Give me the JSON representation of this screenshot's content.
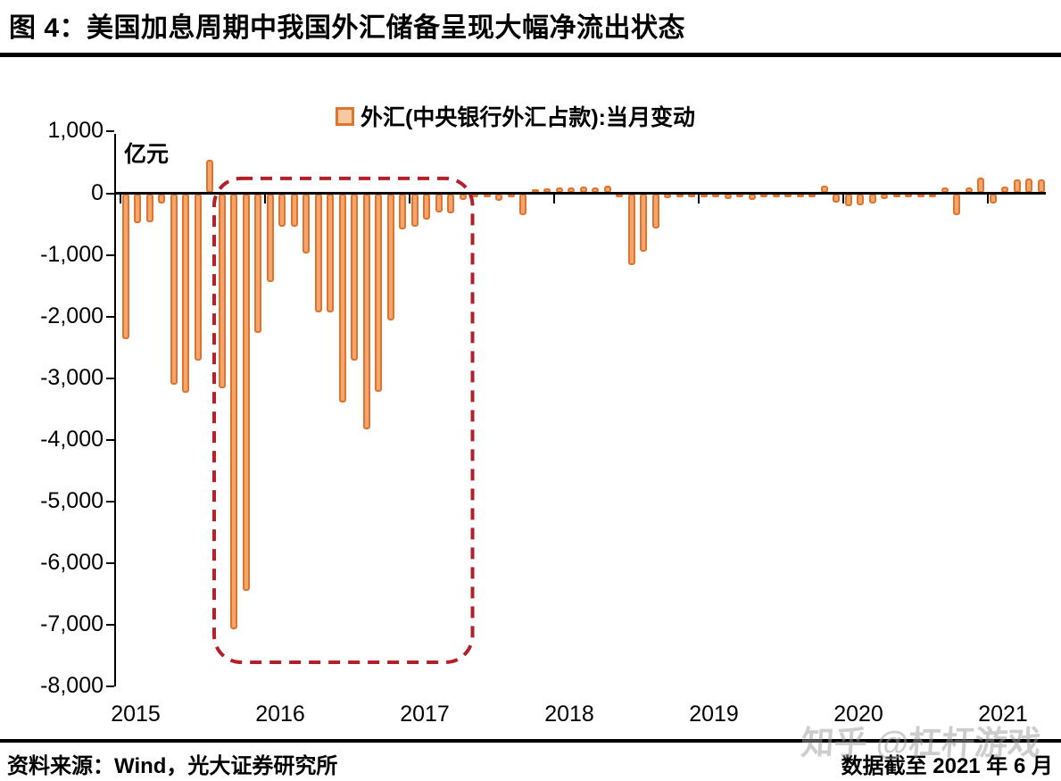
{
  "header": {
    "title": "图 4：美国加息周期中我国外汇储备呈现大幅净流出状态"
  },
  "chart_data": {
    "type": "bar",
    "legend": "外汇(中央银行外汇占款):当月变动",
    "unit": "亿元",
    "ylim": [
      -8000,
      1000
    ],
    "grid": false,
    "legend_position": "top-center",
    "bar_color_note": "orange outlined bars",
    "y_ticks": [
      1000,
      0,
      -1000,
      -2000,
      -3000,
      -4000,
      -5000,
      -6000,
      -7000,
      -8000
    ],
    "y_tick_labels": [
      "1,000",
      "0",
      "-1,000",
      "-2,000",
      "-3,000",
      "-4,000",
      "-5,000",
      "-6,000",
      "-7,000",
      "-8,000"
    ],
    "x_year_labels": [
      "2015",
      "2016",
      "2017",
      "2018",
      "2019",
      "2020",
      "2021"
    ],
    "x": [
      "2015-01",
      "2015-02",
      "2015-03",
      "2015-04",
      "2015-05",
      "2015-06",
      "2015-07",
      "2015-08",
      "2015-09",
      "2015-10",
      "2015-11",
      "2015-12",
      "2016-01",
      "2016-02",
      "2016-03",
      "2016-04",
      "2016-05",
      "2016-06",
      "2016-07",
      "2016-08",
      "2016-09",
      "2016-10",
      "2016-11",
      "2016-12",
      "2017-01",
      "2017-02",
      "2017-03",
      "2017-04",
      "2017-05",
      "2017-06",
      "2017-07",
      "2017-08",
      "2017-09",
      "2017-10",
      "2017-11",
      "2017-12",
      "2018-01",
      "2018-02",
      "2018-03",
      "2018-04",
      "2018-05",
      "2018-06",
      "2018-07",
      "2018-08",
      "2018-09",
      "2018-10",
      "2018-11",
      "2018-12",
      "2019-01",
      "2019-02",
      "2019-03",
      "2019-04",
      "2019-05",
      "2019-06",
      "2019-07",
      "2019-08",
      "2019-09",
      "2019-10",
      "2019-11",
      "2019-12",
      "2020-01",
      "2020-02",
      "2020-03",
      "2020-04",
      "2020-05",
      "2020-06",
      "2020-07",
      "2020-08",
      "2020-09",
      "2020-10",
      "2020-11",
      "2020-12",
      "2021-01",
      "2021-02",
      "2021-03",
      "2021-04",
      "2021-05"
    ],
    "values": [
      -2370,
      -490,
      -470,
      -170,
      -3110,
      -3230,
      -2720,
      540,
      -3170,
      -7080,
      -6450,
      -2270,
      -1440,
      -550,
      -550,
      -980,
      -1930,
      -1930,
      -3400,
      -2710,
      -3830,
      -3220,
      -2070,
      -580,
      -550,
      -430,
      -310,
      -330,
      -110,
      -60,
      -50,
      -130,
      -25,
      -360,
      70,
      80,
      95,
      95,
      110,
      95,
      120,
      -70,
      -1170,
      -950,
      -565,
      -80,
      -40,
      -40,
      -35,
      -35,
      -95,
      -35,
      -110,
      -35,
      -35,
      -40,
      -35,
      -40,
      120,
      -145,
      -210,
      -190,
      -160,
      -90,
      -60,
      -40,
      -60,
      -70,
      90,
      -350,
      100,
      250,
      -170,
      105,
      230,
      240,
      225
    ],
    "annotation": {
      "type": "dashed-rounded-box",
      "from_month": "2015-09",
      "to_month": "2017-05",
      "from_index": 8,
      "to_index": 28,
      "top_value": 240,
      "bottom_value": -7610
    }
  },
  "footer": {
    "source": "资料来源：Wind，光大证券研究所",
    "cutoff": "数据截至 2021 年 6 月"
  },
  "watermark": {
    "text": "知乎 @杠杆游戏"
  },
  "colors": {
    "bar_fill": "#f2a66e",
    "bar_border": "#e0742f",
    "legend_swatch_fill": "#f6c9a0",
    "annotation_box": "#b3202a",
    "axis": "#000000",
    "text": "#000000",
    "watermark": "#9c9c9c",
    "background": "#ffffff"
  }
}
